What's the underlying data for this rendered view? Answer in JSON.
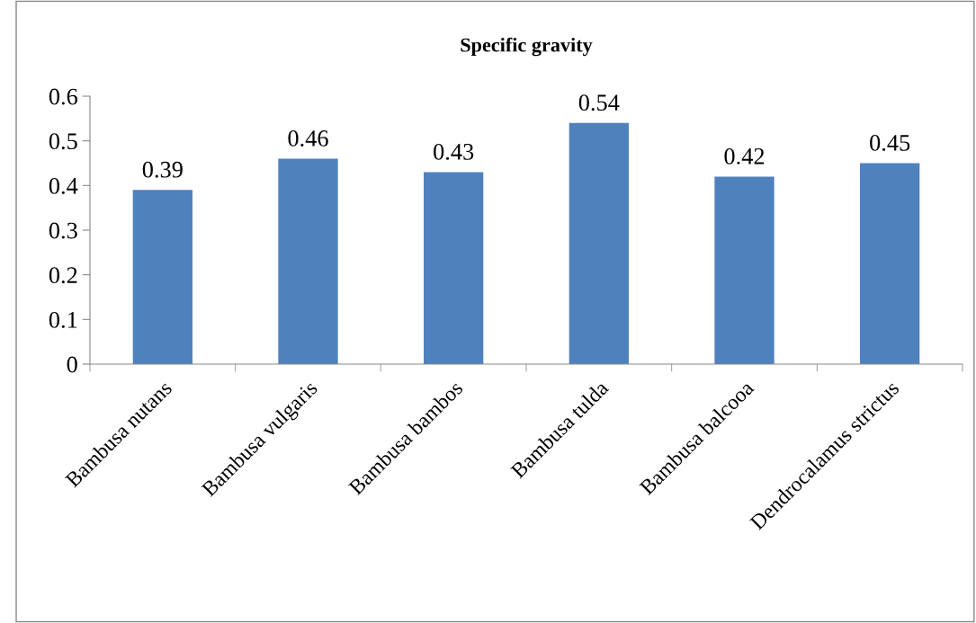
{
  "chart_data": {
    "type": "bar",
    "title": "Specific gravity",
    "categories": [
      "Bambusa nutans",
      "Bambusa vulgaris",
      "Bambusa bambos",
      "Bambusa tulda",
      "Bambusa balcooa",
      "Dendrocalamus strictus"
    ],
    "values": [
      0.39,
      0.46,
      0.43,
      0.54,
      0.42,
      0.45
    ],
    "color": "#4f81bd",
    "ylim": [
      0,
      0.6
    ],
    "yticks": [
      0,
      0.1,
      0.2,
      0.3,
      0.4,
      0.5,
      0.6
    ],
    "data_labels": true,
    "grid": false,
    "legend": false
  }
}
